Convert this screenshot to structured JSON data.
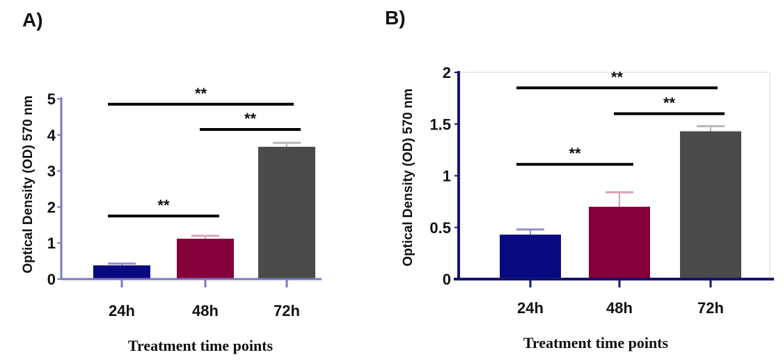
{
  "chart_data": [
    {
      "panel": "A)",
      "type": "bar",
      "title": "",
      "xlabel": "Treatment time points",
      "ylabel": "Optical Density (OD) 570 nm",
      "categories": [
        "24h",
        "48h",
        "72h"
      ],
      "values": [
        0.38,
        1.12,
        3.67
      ],
      "error": [
        0.05,
        0.08,
        0.11
      ],
      "colors": [
        "#0a0a80",
        "#85003a",
        "#4a4a4a"
      ],
      "ylim": [
        0,
        5
      ],
      "yticks": [
        0,
        1,
        2,
        3,
        4,
        5
      ],
      "ytick_labels": [
        "0",
        "1",
        "2",
        "3",
        "4",
        "5"
      ],
      "axis_color": "#7a78c0",
      "grid": false,
      "significance": [
        {
          "from": 0,
          "to": 1,
          "y": 1.75,
          "label": "**"
        },
        {
          "from": 0,
          "to": 2,
          "y": 4.85,
          "label": "**"
        },
        {
          "from": 1,
          "to": 2,
          "y": 4.15,
          "label": "**"
        }
      ]
    },
    {
      "panel": "B)",
      "type": "bar",
      "title": "",
      "xlabel": "Treatment time points",
      "ylabel": "Optical Density (OD) 570 nm",
      "categories": [
        "24h",
        "48h",
        "72h"
      ],
      "values": [
        0.43,
        0.7,
        1.43
      ],
      "error": [
        0.05,
        0.14,
        0.05
      ],
      "colors": [
        "#0a0a80",
        "#85003a",
        "#4a4a4a"
      ],
      "ylim": [
        0,
        2
      ],
      "yticks": [
        0,
        0.5,
        1,
        1.5,
        2
      ],
      "ytick_labels": [
        "0",
        "0.5",
        "1",
        "1.5",
        "2"
      ],
      "axis_color": "#14146e",
      "grid": false,
      "significance": [
        {
          "from": 0,
          "to": 1,
          "y": 1.11,
          "label": "**"
        },
        {
          "from": 0,
          "to": 2,
          "y": 1.85,
          "label": "**"
        },
        {
          "from": 1,
          "to": 2,
          "y": 1.6,
          "label": "**"
        }
      ]
    }
  ]
}
